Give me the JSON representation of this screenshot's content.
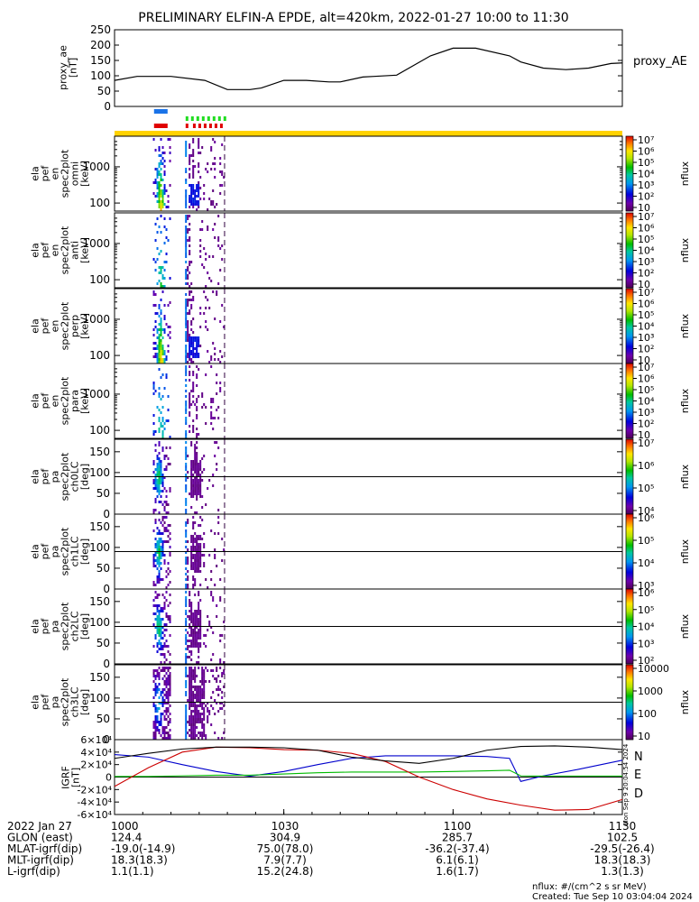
{
  "title": "PRELIMINARY ELFIN-A EPDE, alt=420km, 2022-01-27 10:00 to 11:30",
  "panel_labels": [
    [
      "proxy_ae",
      "[nT]"
    ],
    [
      "ela",
      "pef",
      "en",
      "spec2plot",
      "omni",
      "[keV]"
    ],
    [
      "ela",
      "pef",
      "en",
      "spec2plot",
      "anti",
      "[keV]"
    ],
    [
      "ela",
      "pef",
      "en",
      "spec2plot",
      "perp",
      "[keV]"
    ],
    [
      "ela",
      "pef",
      "en",
      "spec2plot",
      "para",
      "[keV]"
    ],
    [
      "ela",
      "pef",
      "pa",
      "spec2plot",
      "ch0LC",
      "[deg]"
    ],
    [
      "ela",
      "pef",
      "pa",
      "spec2plot",
      "ch1LC",
      "[deg]"
    ],
    [
      "ela",
      "pef",
      "pa",
      "spec2plot",
      "ch2LC",
      "[deg]"
    ],
    [
      "ela",
      "pef",
      "pa",
      "spec2plot",
      "ch3LC",
      "[deg]"
    ],
    [
      "IGRF",
      "[nT]"
    ]
  ],
  "right_legend": {
    "proxy_ae": "proxy_AE",
    "igrf_n": "N",
    "igrf_e": "E",
    "igrf_d": "D"
  },
  "colorbar_unit": "nflux",
  "colorbar_ticks": [
    [
      "10",
      "10²",
      "10³",
      "10⁴",
      "10⁵",
      "10⁶",
      "10⁷"
    ],
    [
      "10",
      "10²",
      "10³",
      "10⁴",
      "10⁵",
      "10⁶",
      "10⁷"
    ],
    [
      "10",
      "10²",
      "10³",
      "10⁴",
      "10⁵",
      "10⁶",
      "10⁷"
    ],
    [
      "10",
      "10²",
      "10³",
      "10⁴",
      "10⁵",
      "10⁶",
      "10⁷"
    ],
    [
      "10⁴",
      "10⁵",
      "10⁶",
      "10⁷"
    ],
    [
      "10³",
      "10⁴",
      "10⁵",
      "10⁶"
    ],
    [
      "10²",
      "10³",
      "10⁴",
      "10⁵",
      "10⁶"
    ],
    [
      "10",
      "100",
      "1000",
      "10000"
    ]
  ],
  "colors": {
    "ae_line": "#000000",
    "igrf_n": "#0000cc",
    "igrf_e": "#00bb00",
    "igrf_d": "#cc0000",
    "bar_yellow": "#ffd200",
    "bar_blue": "#1a73e8",
    "bar_red": "#e00000",
    "bar_green": "#22dd22"
  },
  "footer": {
    "rows": [
      {
        "label": "2022 Jan 27",
        "values": [
          "1000",
          "1030",
          "1100",
          "1130"
        ]
      },
      {
        "label": "GLON (east)",
        "values": [
          "124.4",
          "304.9",
          "285.7",
          "102.5"
        ]
      },
      {
        "label": "MLAT-igrf(dip)",
        "values": [
          "-19.0(-14.9)",
          "75.0(78.0)",
          "-36.2(-37.4)",
          "-29.5(-26.4)"
        ]
      },
      {
        "label": "MLT-igrf(dip)",
        "values": [
          "18.3(18.3)",
          "7.9(7.7)",
          "6.1(6.1)",
          "18.3(18.3)"
        ]
      },
      {
        "label": "L-igrf(dip)",
        "values": [
          "1.1(1.1)",
          "15.2(24.8)",
          "1.6(1.7)",
          "1.3(1.3)"
        ]
      }
    ],
    "nflux_units": "nflux: #/(cm^2 s sr MeV)",
    "created": "Created: Tue Sep 10 03:04:04 2024",
    "side_stamp": "Mon Sep 9 20:04:54 2024"
  },
  "chart_data": [
    {
      "type": "line",
      "name": "proxy_ae",
      "x_unit": "minutes after 10:00",
      "xlim": [
        0,
        90
      ],
      "ylim": [
        0,
        250
      ],
      "yticks": [
        0,
        50,
        100,
        150,
        200,
        250
      ],
      "x": [
        0,
        4,
        10,
        16,
        20,
        24,
        26,
        30,
        34,
        38,
        40,
        44,
        46,
        50,
        56,
        60,
        64,
        70,
        72,
        76,
        80,
        84,
        88,
        90
      ],
      "y": [
        85,
        98,
        98,
        85,
        55,
        55,
        60,
        85,
        85,
        80,
        80,
        96,
        98,
        102,
        165,
        190,
        190,
        165,
        145,
        125,
        120,
        125,
        140,
        142
      ],
      "series_name": "proxy_AE"
    },
    {
      "type": "heatmap",
      "name": "spectrograms",
      "x_unit": "minutes after 10:00",
      "xlim": [
        0,
        90
      ],
      "panels": [
        {
          "id": "omni",
          "ylabel": "[keV]",
          "scale": "log",
          "ylim": [
            60,
            7000
          ],
          "yticks": [
            100,
            1000
          ]
        },
        {
          "id": "anti",
          "ylabel": "[keV]",
          "scale": "log",
          "ylim": [
            60,
            7000
          ],
          "yticks": [
            100,
            1000
          ]
        },
        {
          "id": "perp",
          "ylabel": "[keV]",
          "scale": "log",
          "ylim": [
            60,
            7000
          ],
          "yticks": [
            100,
            1000
          ]
        },
        {
          "id": "para",
          "ylabel": "[keV]",
          "scale": "log",
          "ylim": [
            60,
            7000
          ],
          "yticks": [
            100,
            1000
          ]
        },
        {
          "id": "ch0LC",
          "ylabel": "[deg]",
          "scale": "linear",
          "ylim": [
            0,
            180
          ],
          "yticks": [
            0,
            50,
            100,
            150
          ],
          "ref_line": 90
        },
        {
          "id": "ch1LC",
          "ylabel": "[deg]",
          "scale": "linear",
          "ylim": [
            0,
            180
          ],
          "yticks": [
            0,
            50,
            100,
            150
          ],
          "ref_line": 90
        },
        {
          "id": "ch2LC",
          "ylabel": "[deg]",
          "scale": "linear",
          "ylim": [
            0,
            180
          ],
          "yticks": [
            0,
            50,
            100,
            150
          ],
          "ref_line": 90
        },
        {
          "id": "ch3LC",
          "ylabel": "[deg]",
          "scale": "linear",
          "ylim": [
            0,
            180
          ],
          "yticks": [
            0,
            50,
            100,
            150
          ],
          "ref_line": 90
        }
      ],
      "science_zones_minutes": [
        [
          6.8,
          9.8
        ],
        [
          12.5,
          19.5
        ]
      ],
      "bars": {
        "yellow": [
          [
            0,
            90
          ]
        ],
        "blue": [
          [
            7.0,
            9.4
          ]
        ],
        "red": [
          [
            7.0,
            9.4
          ],
          [
            12.6,
            12.9
          ],
          [
            13.9,
            19.4
          ]
        ],
        "green": [
          [
            12.6,
            19.4
          ]
        ]
      }
    },
    {
      "type": "line",
      "name": "IGRF",
      "x_unit": "minutes after 10:00",
      "xlim": [
        0,
        90
      ],
      "ylim": [
        -60000,
        60000
      ],
      "yticks": [
        "-6×10⁴",
        "-4×10⁴",
        "-2×10⁴",
        "0",
        "2×10⁴",
        "4×10⁴",
        "6×10⁴"
      ],
      "series": [
        {
          "name": "N",
          "x": [
            0,
            6,
            12,
            18,
            24,
            30,
            36,
            42,
            48,
            54,
            60,
            66,
            70,
            72,
            76,
            82,
            90
          ],
          "y": [
            36000,
            32000,
            20000,
            9000,
            1500,
            9000,
            20000,
            30000,
            34000,
            34000,
            34000,
            33000,
            30000,
            -7000,
            2000,
            12000,
            27000
          ]
        },
        {
          "name": "E",
          "x": [
            0,
            6,
            12,
            18,
            24,
            30,
            36,
            42,
            48,
            54,
            60,
            66,
            70,
            72,
            76,
            82,
            90
          ],
          "y": [
            1000,
            1000,
            2000,
            3000,
            3000,
            5000,
            7000,
            8000,
            8000,
            8000,
            9000,
            10000,
            11000,
            2000,
            1500,
            1500,
            1500
          ]
        },
        {
          "name": "D",
          "x": [
            0,
            6,
            12,
            18,
            24,
            30,
            36,
            42,
            48,
            54,
            60,
            66,
            72,
            78,
            84,
            90
          ],
          "y": [
            -15000,
            15000,
            40000,
            48000,
            47000,
            44000,
            43000,
            38000,
            25000,
            0,
            -20000,
            -35000,
            -45000,
            -53000,
            -52000,
            -36000
          ]
        },
        {
          "name": "total",
          "x": [
            0,
            6,
            12,
            18,
            24,
            30,
            36,
            42,
            48,
            54,
            60,
            66,
            72,
            78,
            84,
            90
          ],
          "y": [
            30000,
            38000,
            45000,
            48000,
            48000,
            47000,
            43000,
            32000,
            26000,
            22000,
            30000,
            43000,
            49000,
            50000,
            48000,
            44000
          ]
        }
      ]
    }
  ]
}
